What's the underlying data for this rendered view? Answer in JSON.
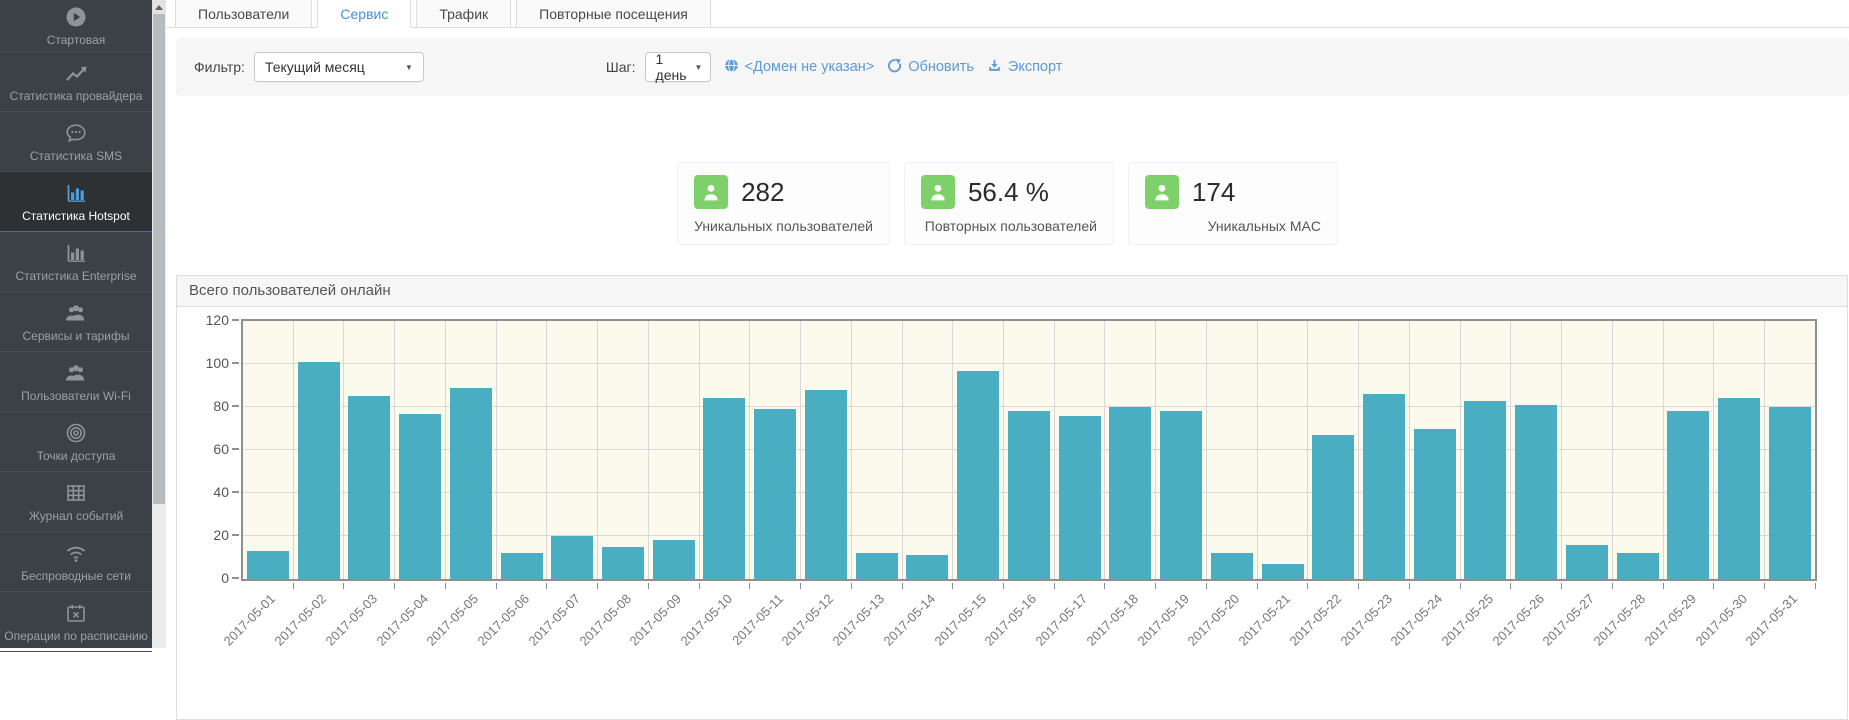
{
  "sidebar": {
    "items": [
      {
        "name": "start",
        "label": "Стартовая",
        "icon": "play-circle-icon",
        "active": false
      },
      {
        "name": "provider-stats",
        "label": "Статистика провайдера",
        "icon": "line-chart-icon",
        "active": false
      },
      {
        "name": "sms-stats",
        "label": "Статистика SMS",
        "icon": "chat-bubble-icon",
        "active": false
      },
      {
        "name": "hotspot-stats",
        "label": "Статистика Hotspot",
        "icon": "bar-chart-icon",
        "active": true
      },
      {
        "name": "enterprise-stats",
        "label": "Статистика Enterprise",
        "icon": "bar-chart-icon",
        "active": false
      },
      {
        "name": "services-tariffs",
        "label": "Сервисы и тарифы",
        "icon": "users-icon",
        "active": false
      },
      {
        "name": "wifi-users",
        "label": "Пользователи Wi-Fi",
        "icon": "users-icon",
        "active": false
      },
      {
        "name": "access-points",
        "label": "Точки доступа",
        "icon": "target-icon",
        "active": false
      },
      {
        "name": "event-log",
        "label": "Журнал событий",
        "icon": "table-icon",
        "active": false
      },
      {
        "name": "wireless-networks",
        "label": "Беспроводные сети",
        "icon": "wifi-icon",
        "active": false
      },
      {
        "name": "scheduled-operations",
        "label": "Операции по расписанию",
        "icon": "calendar-x-icon",
        "active": false
      }
    ]
  },
  "tabs": [
    {
      "name": "users",
      "label": "Пользователи",
      "active": false
    },
    {
      "name": "service",
      "label": "Сервис",
      "active": true
    },
    {
      "name": "traffic",
      "label": "Трафик",
      "active": false
    },
    {
      "name": "repeat-visits",
      "label": "Повторные посещения",
      "active": false
    }
  ],
  "filter": {
    "filter_label": "Фильтр:",
    "filter_value": "Текущий месяц",
    "step_label": "Шаг:",
    "step_value": "1 день",
    "domain_link": "<Домен не указан>",
    "refresh_link": "Обновить",
    "export_link": "Экспорт"
  },
  "stats": [
    {
      "name": "unique-users",
      "value": "282",
      "label": "Уникальных пользователей",
      "icon": "person-icon"
    },
    {
      "name": "repeat-users",
      "value": "56.4 %",
      "label": "Повторных пользователей",
      "icon": "person-icon"
    },
    {
      "name": "unique-mac",
      "value": "174",
      "label": "Уникальных MAC",
      "icon": "person-icon"
    }
  ],
  "chart_data": {
    "type": "bar",
    "title": "Всего пользователей онлайн",
    "categories": [
      "2017-05-01",
      "2017-05-02",
      "2017-05-03",
      "2017-05-04",
      "2017-05-05",
      "2017-05-06",
      "2017-05-07",
      "2017-05-08",
      "2017-05-09",
      "2017-05-10",
      "2017-05-11",
      "2017-05-12",
      "2017-05-13",
      "2017-05-14",
      "2017-05-15",
      "2017-05-16",
      "2017-05-17",
      "2017-05-18",
      "2017-05-19",
      "2017-05-20",
      "2017-05-21",
      "2017-05-22",
      "2017-05-23",
      "2017-05-24",
      "2017-05-25",
      "2017-05-26",
      "2017-05-27",
      "2017-05-28",
      "2017-05-29",
      "2017-05-30",
      "2017-05-31"
    ],
    "values": [
      13,
      101,
      85,
      77,
      89,
      12,
      20,
      15,
      18,
      84,
      79,
      88,
      12,
      11,
      97,
      78,
      76,
      80,
      78,
      12,
      7,
      67,
      86,
      70,
      83,
      81,
      16,
      12,
      78,
      84,
      80
    ],
    "xlabel": "",
    "ylabel": "",
    "ylim": [
      0,
      120
    ],
    "yticks": [
      0,
      20,
      40,
      60,
      80,
      100,
      120
    ],
    "grid": true,
    "legend": "none",
    "bar_color": "#4aaec2",
    "plot_bg": "#fcf9ed"
  },
  "colors": {
    "accent_blue": "#4a90d9",
    "link_blue": "#5a9bd8",
    "stat_green": "#7ed06a",
    "bar_teal": "#4aaec2",
    "sidebar_bg": "#3c4147"
  }
}
